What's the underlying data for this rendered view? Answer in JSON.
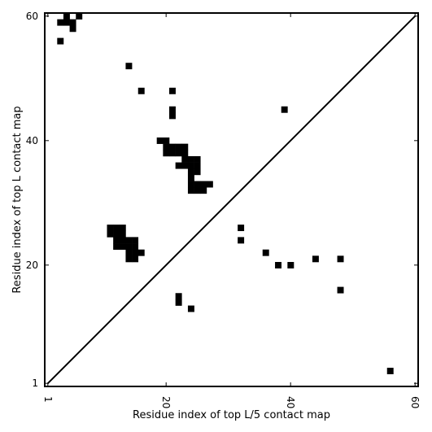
{
  "chart_data": {
    "type": "heatmap",
    "subtype": "contact-map",
    "xlabel": "Residue index of top L/5 contact map",
    "ylabel": "Residue index of top L contact map",
    "xlim": [
      1,
      60
    ],
    "ylim": [
      1,
      60
    ],
    "x_ticks": [
      1,
      20,
      40,
      60
    ],
    "y_ticks": [
      1,
      20,
      40,
      60
    ],
    "x_tick_rotation": -90,
    "diagonal": true,
    "colors": {
      "contact": "#000000",
      "background": "#ffffff"
    },
    "upper_left_contacts": [
      [
        4,
        60
      ],
      [
        6,
        60
      ],
      [
        3,
        59
      ],
      [
        4,
        59
      ],
      [
        5,
        59
      ],
      [
        5,
        58
      ],
      [
        3,
        56
      ],
      [
        14,
        52
      ],
      [
        16,
        48
      ],
      [
        21,
        48
      ],
      [
        21,
        45
      ],
      [
        21,
        44
      ],
      [
        19,
        40
      ],
      [
        20,
        40
      ],
      [
        20,
        39
      ],
      [
        21,
        39
      ],
      [
        22,
        39
      ],
      [
        23,
        39
      ],
      [
        20,
        38
      ],
      [
        21,
        38
      ],
      [
        22,
        38
      ],
      [
        23,
        38
      ],
      [
        23,
        37
      ],
      [
        24,
        37
      ],
      [
        25,
        37
      ],
      [
        22,
        36
      ],
      [
        23,
        36
      ],
      [
        24,
        36
      ],
      [
        25,
        36
      ],
      [
        24,
        35
      ],
      [
        25,
        35
      ],
      [
        24,
        34
      ],
      [
        24,
        33
      ],
      [
        25,
        33
      ],
      [
        26,
        33
      ],
      [
        27,
        33
      ],
      [
        24,
        32
      ],
      [
        25,
        32
      ],
      [
        26,
        32
      ],
      [
        11,
        26
      ],
      [
        12,
        26
      ],
      [
        13,
        26
      ],
      [
        11,
        25
      ],
      [
        12,
        25
      ],
      [
        13,
        25
      ],
      [
        12,
        24
      ],
      [
        13,
        24
      ],
      [
        14,
        24
      ],
      [
        15,
        24
      ],
      [
        12,
        23
      ],
      [
        13,
        23
      ],
      [
        14,
        23
      ],
      [
        15,
        23
      ],
      [
        14,
        22
      ],
      [
        15,
        22
      ],
      [
        16,
        22
      ],
      [
        14,
        21
      ],
      [
        15,
        21
      ]
    ],
    "lower_right_contacts": [
      [
        39,
        45
      ],
      [
        32,
        26
      ],
      [
        32,
        24
      ],
      [
        36,
        22
      ],
      [
        38,
        20
      ],
      [
        40,
        20
      ],
      [
        44,
        21
      ],
      [
        48,
        21
      ],
      [
        48,
        16
      ],
      [
        22,
        15
      ],
      [
        22,
        14
      ],
      [
        24,
        13
      ],
      [
        56,
        3
      ]
    ]
  }
}
